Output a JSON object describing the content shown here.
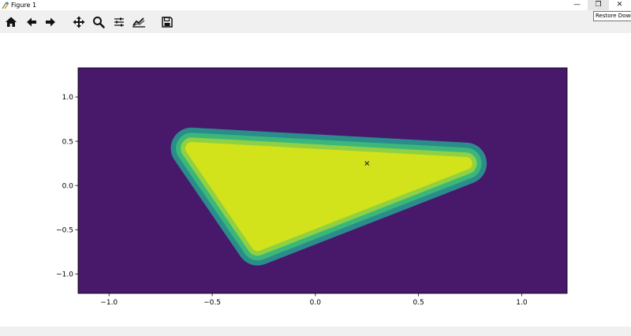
{
  "window": {
    "title": "Figure 1",
    "minimize_glyph": "—",
    "restore_glyph": "❐",
    "close_glyph": "✕",
    "tooltip": "Restore Down"
  },
  "toolbar": {
    "tools": [
      "home-icon",
      "back-arrow-icon",
      "forward-arrow-icon",
      "pan-icon",
      "zoom-icon",
      "subplots-icon",
      "edit-curves-icon",
      "save-icon"
    ]
  },
  "chart_data": {
    "type": "heatmap",
    "title": "",
    "xlabel": "",
    "ylabel": "",
    "xlim": [
      -1.15,
      1.22
    ],
    "ylim": [
      -1.22,
      1.33
    ],
    "x_ticks": [
      {
        "value": -1.0,
        "label": "−1.0"
      },
      {
        "value": -0.5,
        "label": "−0.5"
      },
      {
        "value": 0.0,
        "label": "0.0"
      },
      {
        "value": 0.5,
        "label": "0.5"
      },
      {
        "value": 1.0,
        "label": "1.0"
      }
    ],
    "y_ticks": [
      {
        "value": 1.0,
        "label": "1.0"
      },
      {
        "value": 0.5,
        "label": "0.5"
      },
      {
        "value": 0.0,
        "label": "0.0"
      },
      {
        "value": -0.5,
        "label": "−0.5"
      },
      {
        "value": -1.0,
        "label": "−1.0"
      }
    ],
    "background_color": "#48196b",
    "levels": [
      {
        "color": "#2b8c8c",
        "offset": 0.07
      },
      {
        "color": "#3cb77a",
        "offset": 0.045
      },
      {
        "color": "#8fd143",
        "offset": 0.022
      },
      {
        "color": "#d2e21b",
        "offset": 0.0
      }
    ],
    "triangle_vertices": [
      [
        -0.6,
        0.42
      ],
      [
        0.73,
        0.25
      ],
      [
        -0.28,
        -0.67
      ]
    ],
    "marker": {
      "x": 0.25,
      "y": 0.25,
      "symbol": "x"
    }
  }
}
